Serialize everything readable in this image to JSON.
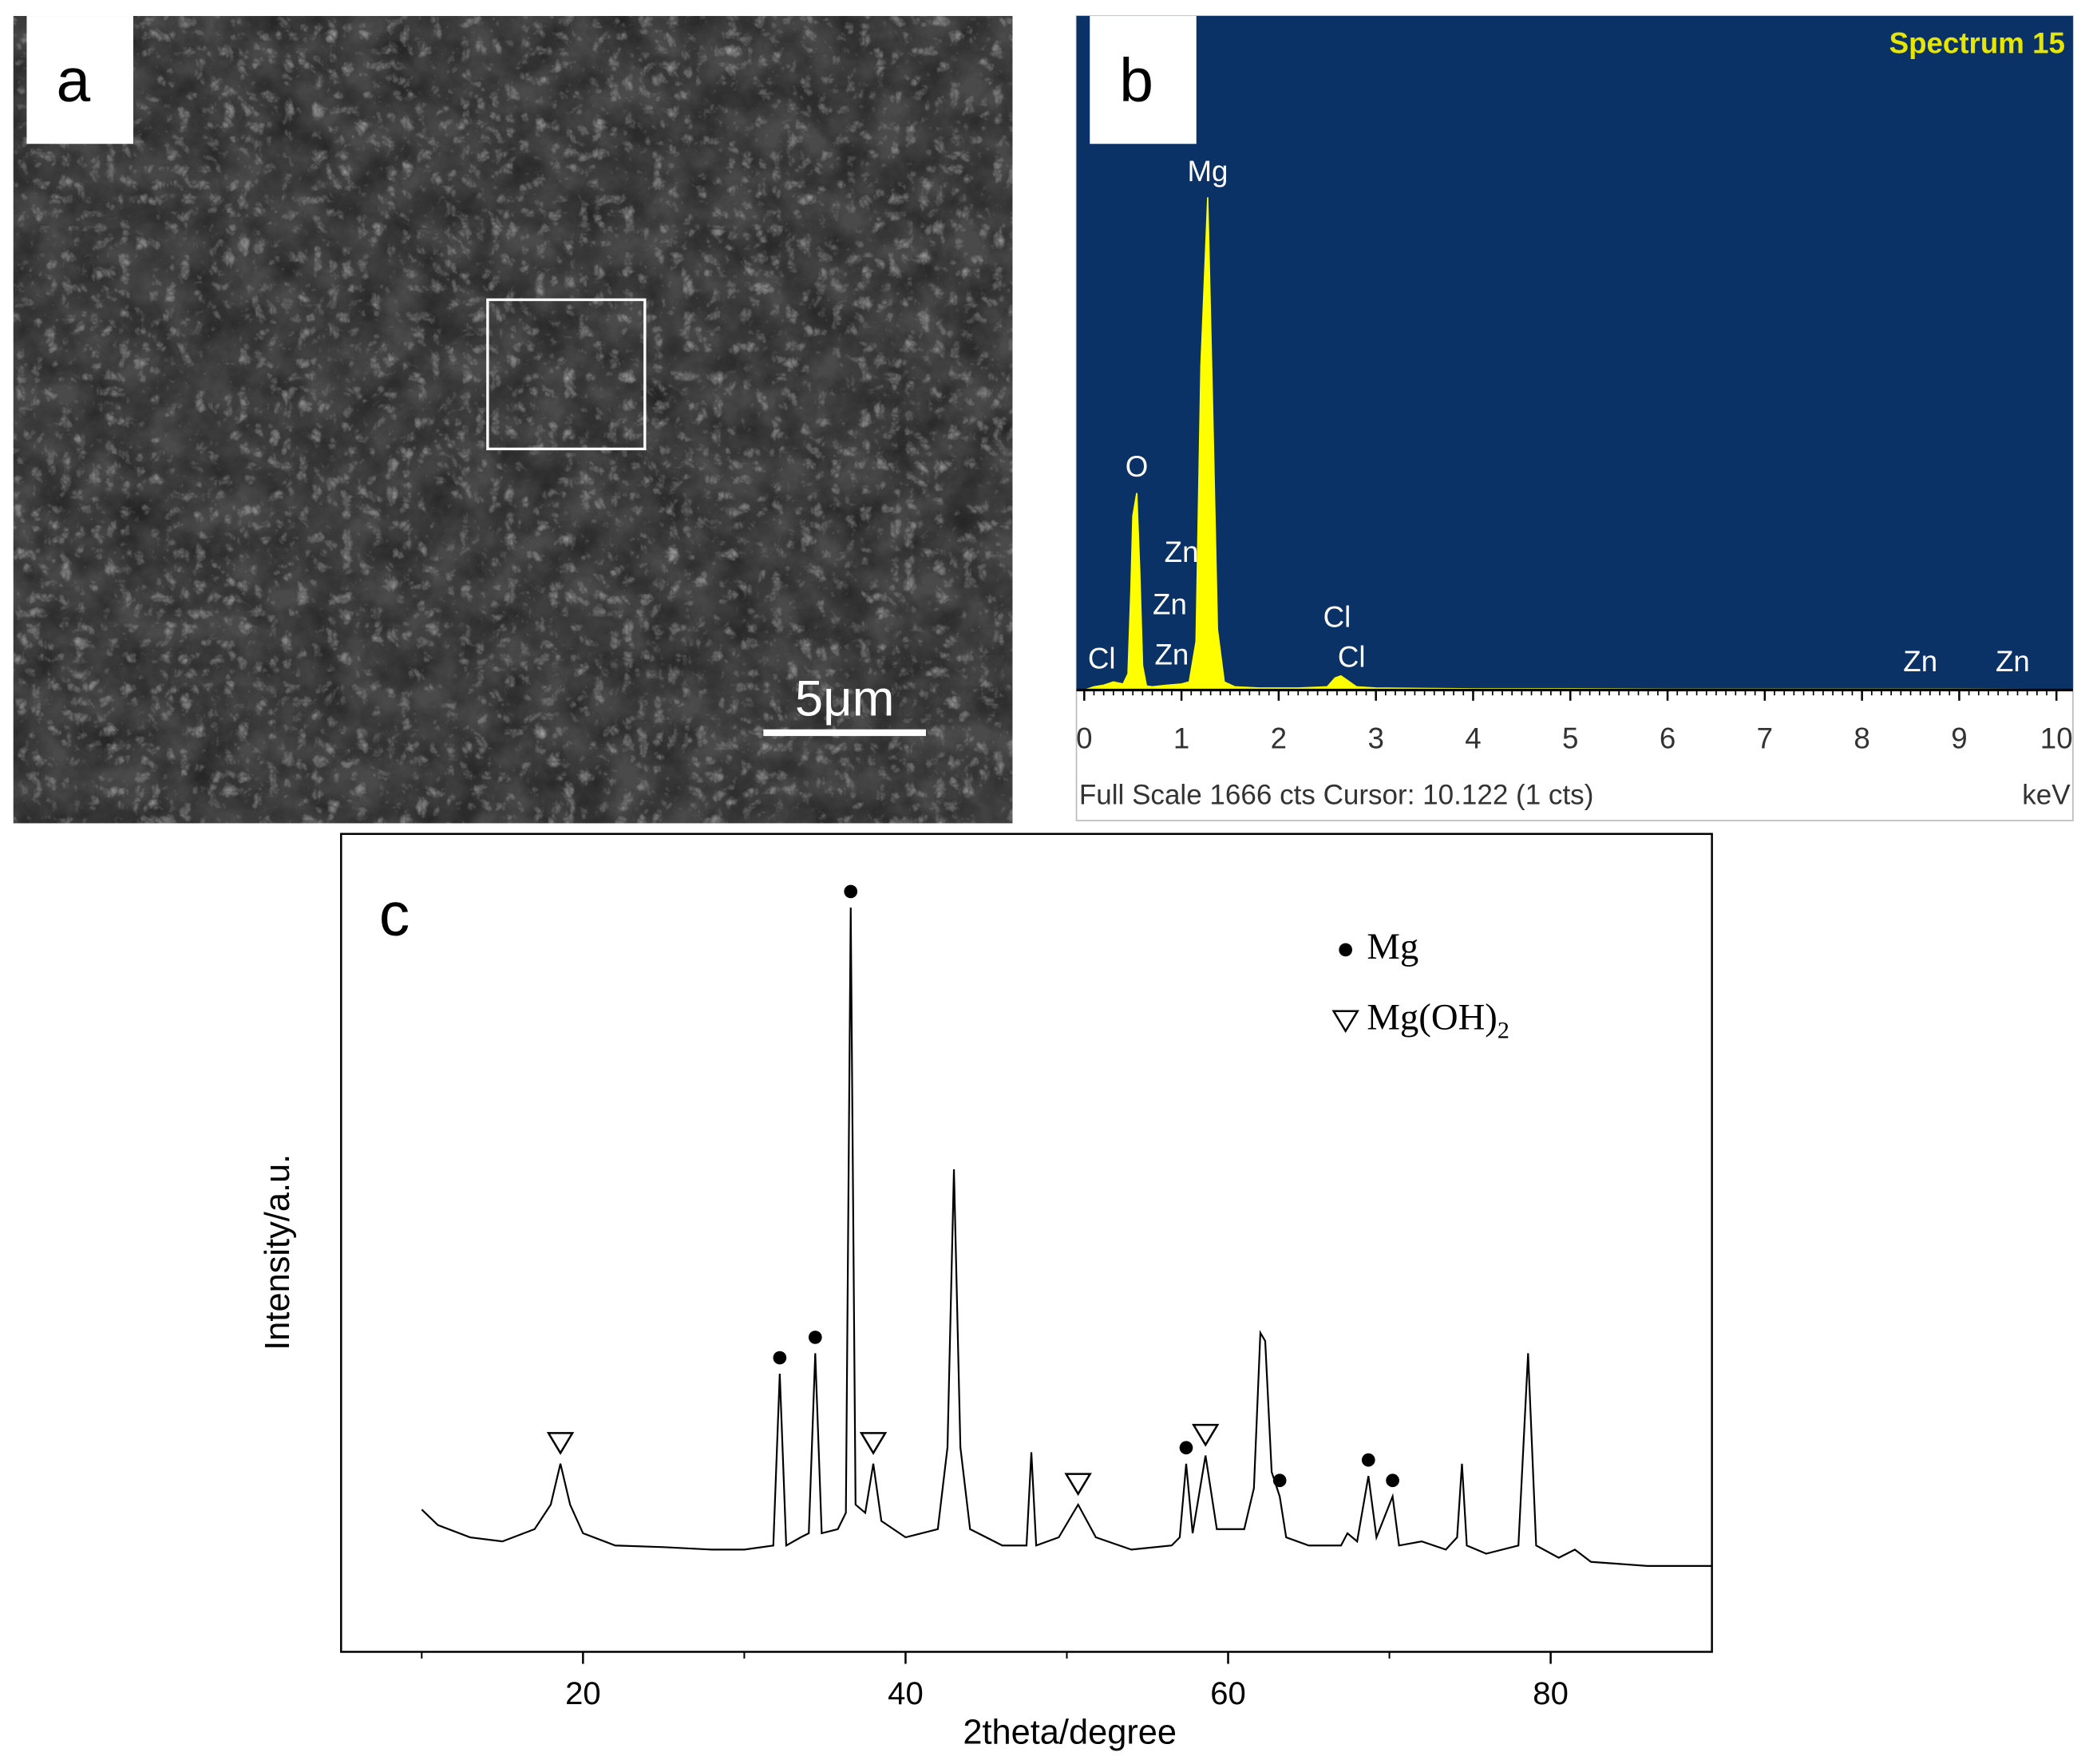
{
  "panel_a": {
    "label": "a",
    "scale_bar": "5μm"
  },
  "chart_data": [
    {
      "type": "area",
      "label": "b",
      "title": "Spectrum 15",
      "footer": "Full Scale 1666 cts Cursor: 10.122  (1 cts)",
      "xlabel": "keV",
      "background": "#0b3266",
      "x": [
        0,
        0.1,
        0.2,
        0.3,
        0.4,
        0.45,
        0.48,
        0.5,
        0.54,
        0.57,
        0.6,
        0.64,
        0.7,
        0.85,
        1.0,
        1.08,
        1.15,
        1.2,
        1.27,
        1.32,
        1.37,
        1.44,
        1.55,
        1.8,
        2.2,
        2.5,
        2.58,
        2.64,
        2.7,
        2.8,
        3.0,
        4,
        5,
        6,
        7,
        8,
        9,
        10,
        10.17
      ],
      "series": [
        {
          "color": "#ffff00",
          "values": [
            0,
            8,
            12,
            20,
            15,
            40,
            250,
            430,
            487,
            300,
            60,
            10,
            8,
            12,
            15,
            20,
            120,
            800,
            1218,
            700,
            150,
            20,
            8,
            5,
            5,
            8,
            30,
            35,
            25,
            8,
            5,
            3,
            3,
            2,
            2,
            2,
            2,
            1,
            1
          ]
        }
      ],
      "xlim": [
        -0.08,
        10.17
      ],
      "ylim": [
        0,
        1666
      ],
      "xticks": [
        0,
        1,
        2,
        3,
        4,
        5,
        6,
        7,
        8,
        9,
        10
      ],
      "annotations": [
        {
          "text": "Mg",
          "x": 1.27,
          "y": 1277
        },
        {
          "text": "O",
          "x": 0.54,
          "y": 547
        },
        {
          "text": "Zn",
          "x": 1.0,
          "y": 336
        },
        {
          "text": "Zn",
          "x": 0.88,
          "y": 207
        },
        {
          "text": "Zn",
          "x": 0.9,
          "y": 82
        },
        {
          "text": "Cl",
          "x": 0.18,
          "y": 72
        },
        {
          "text": "Cl",
          "x": 2.6,
          "y": 175
        },
        {
          "text": "Cl",
          "x": 2.75,
          "y": 76
        },
        {
          "text": "Zn",
          "x": 8.6,
          "y": 66
        },
        {
          "text": "Zn",
          "x": 9.55,
          "y": 66
        }
      ]
    },
    {
      "type": "line",
      "label": "c",
      "xlabel": "2theta/degree",
      "ylabel": "Intensity/a.u.",
      "x": [
        10,
        11,
        13,
        15,
        17,
        18,
        18.6,
        19.2,
        20,
        22,
        25,
        28,
        30,
        31.8,
        32.2,
        32.6,
        33.5,
        34.0,
        34.4,
        34.8,
        35.8,
        36.3,
        36.6,
        36.9,
        37.5,
        38,
        38.5,
        40,
        42,
        42.6,
        43,
        43.4,
        44,
        46,
        47.5,
        47.8,
        48.1,
        49.5,
        50.7,
        51.8,
        54,
        56.5,
        57,
        57.4,
        57.8,
        58.6,
        59.3,
        61,
        61.6,
        62,
        62.3,
        62.7,
        63.2,
        63.6,
        65,
        67,
        67.4,
        68,
        68.7,
        69.2,
        70.2,
        70.6,
        72,
        73.5,
        74.2,
        74.5,
        74.8,
        76,
        78,
        78.6,
        79.1,
        80.5,
        81.5,
        82.5,
        86,
        90
      ],
      "series": [
        {
          "color": "#000000",
          "values": [
            17.4,
            15.5,
            14,
            13.5,
            15,
            18,
            23,
            18,
            14.5,
            13,
            12.8,
            12.5,
            12.5,
            13,
            34,
            13,
            14,
            14.5,
            36.5,
            14.5,
            15,
            17,
            91,
            18,
            17,
            23,
            16,
            14,
            15,
            25,
            59,
            25,
            15,
            13,
            13,
            24.4,
            13,
            14,
            18,
            14,
            12.5,
            13,
            14,
            23,
            14.5,
            24,
            15,
            15,
            20,
            39,
            38,
            22,
            19,
            14,
            13,
            13,
            14.5,
            13.5,
            21.5,
            14,
            19,
            13,
            13.5,
            12.5,
            14,
            23,
            13,
            12,
            13,
            36.5,
            13,
            11.5,
            12.5,
            11,
            10.5,
            10.5
          ]
        }
      ],
      "xlim": [
        5,
        90
      ],
      "ylim": [
        0,
        100
      ],
      "xticks": [
        20,
        40,
        60,
        80
      ],
      "minor_xticks": [
        10,
        30,
        50,
        70
      ],
      "markers": [
        {
          "symbol": "triangle",
          "x": 18.6
        },
        {
          "symbol": "dot",
          "x": 32.2
        },
        {
          "symbol": "dot",
          "x": 34.4
        },
        {
          "symbol": "dot",
          "x": 36.6
        },
        {
          "symbol": "triangle",
          "x": 38
        },
        {
          "symbol": "triangle",
          "x": 50.7
        },
        {
          "symbol": "dot",
          "x": 57.4
        },
        {
          "symbol": "triangle",
          "x": 58.6
        },
        {
          "symbol": "dot",
          "x": 63.2
        },
        {
          "symbol": "dot",
          "x": 68.7
        },
        {
          "symbol": "dot",
          "x": 70.2
        }
      ],
      "legend": [
        {
          "symbol": "dot",
          "label": "Mg"
        },
        {
          "symbol": "triangle",
          "label": "Mg(OH)",
          "subscript": "2"
        }
      ]
    }
  ]
}
